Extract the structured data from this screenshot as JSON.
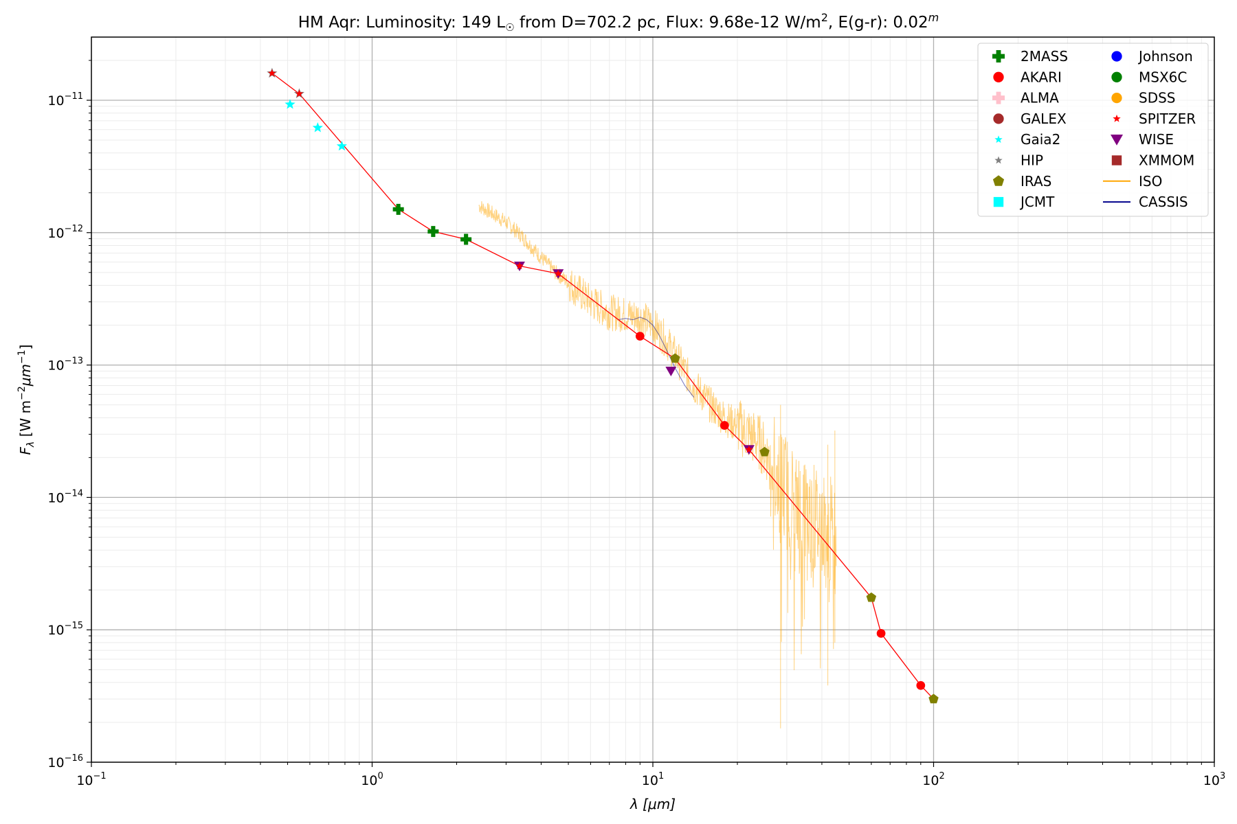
{
  "chart_data": {
    "type": "scatter",
    "title": {
      "object": "HM Aqr:",
      "lum_prefix": "Luminosity: 149 L",
      "sun_symbol": "☉",
      "mid": " from D=702.2 pc, Flux: 9.68e-12 W/m",
      "sup2": "2",
      "tail": ", E(g-r): 0.02",
      "supm": "m"
    },
    "xlabel": {
      "lambda": "λ",
      "unit": " [μm]"
    },
    "ylabel": {
      "F": "F",
      "sub": "λ",
      "unit_a": " [W m",
      "sup_a": "−2",
      "unit_b": "μm",
      "sup_b": "−1",
      "close": "]"
    },
    "x_scale": "log",
    "y_scale": "log",
    "xlim": [
      0.1,
      1000
    ],
    "ylim": [
      1e-16,
      3e-11
    ],
    "x_ticks": [
      {
        "base": "10",
        "exp": "−1",
        "value": 0.1
      },
      {
        "base": "10",
        "exp": "0",
        "value": 1
      },
      {
        "base": "10",
        "exp": "1",
        "value": 10
      },
      {
        "base": "10",
        "exp": "2",
        "value": 100
      },
      {
        "base": "10",
        "exp": "3",
        "value": 1000
      }
    ],
    "y_ticks": [
      {
        "base": "10",
        "exp": "−11",
        "value": 1e-11
      },
      {
        "base": "10",
        "exp": "−12",
        "value": 1e-12
      },
      {
        "base": "10",
        "exp": "−13",
        "value": 1e-13
      },
      {
        "base": "10",
        "exp": "−14",
        "value": 1e-14
      },
      {
        "base": "10",
        "exp": "−15",
        "value": 1e-15
      },
      {
        "base": "10",
        "exp": "−16",
        "value": 1e-16
      }
    ],
    "grid": true,
    "legend_position": "top-right",
    "legend": [
      {
        "label": "2MASS",
        "marker": "plus",
        "color": "#008000"
      },
      {
        "label": "AKARI",
        "marker": "circle",
        "color": "#ff0000"
      },
      {
        "label": "ALMA",
        "marker": "plus",
        "color": "#ffc0cb"
      },
      {
        "label": "GALEX",
        "marker": "circle",
        "color": "#a52a2a"
      },
      {
        "label": "Gaia2",
        "marker": "star",
        "color": "#00ffff"
      },
      {
        "label": "HIP",
        "marker": "star",
        "color": "#808080"
      },
      {
        "label": "IRAS",
        "marker": "pentagon",
        "color": "#808000"
      },
      {
        "label": "JCMT",
        "marker": "square",
        "color": "#00ffff"
      },
      {
        "label": "Johnson",
        "marker": "circle",
        "color": "#0000ff"
      },
      {
        "label": "MSX6C",
        "marker": "circle",
        "color": "#008000"
      },
      {
        "label": "SDSS",
        "marker": "circle",
        "color": "#ffa500"
      },
      {
        "label": "SPITZER",
        "marker": "star",
        "color": "#ff0000"
      },
      {
        "label": "WISE",
        "marker": "triangle-down",
        "color": "#800080"
      },
      {
        "label": "XMMOM",
        "marker": "square",
        "color": "#a52a2a"
      },
      {
        "label": "ISO",
        "marker": "line",
        "color": "#ffa500"
      },
      {
        "label": "CASSIS",
        "marker": "line",
        "color": "#00008b"
      }
    ],
    "sed_line": {
      "color": "#ff0000",
      "x": [
        0.44,
        0.55,
        1.24,
        1.65,
        2.16,
        3.35,
        4.6,
        9.0,
        12.0,
        18.0,
        22.0,
        60.0,
        65.0,
        90.0,
        100.0
      ],
      "y": [
        1.6e-11,
        1.12e-11,
        1.5e-12,
        1.02e-12,
        8.9e-13,
        5.6e-13,
        4.9e-13,
        1.65e-13,
        1.12e-13,
        3.5e-14,
        2.3e-14,
        1.75e-15,
        9.4e-16,
        3.8e-16,
        3e-16
      ]
    },
    "photometry": [
      {
        "survey": "HIP",
        "x": [
          0.44,
          0.55
        ],
        "y": [
          1.6e-11,
          1.12e-11
        ]
      },
      {
        "survey": "Gaia2",
        "x": [
          0.51,
          0.64,
          0.78
        ],
        "y": [
          9.3e-12,
          6.2e-12,
          4.5e-12
        ]
      },
      {
        "survey": "SPITZER",
        "x": [
          0.44,
          0.55,
          3.35,
          4.6,
          22.0
        ],
        "y": [
          1.6e-11,
          1.12e-11,
          5.6e-13,
          4.9e-13,
          2.3e-14
        ]
      },
      {
        "survey": "2MASS",
        "x": [
          1.24,
          1.65,
          2.16
        ],
        "y": [
          1.5e-12,
          1.02e-12,
          8.9e-13
        ]
      },
      {
        "survey": "WISE",
        "x": [
          3.35,
          4.6,
          11.6,
          22.0
        ],
        "y": [
          5.6e-13,
          4.9e-13,
          9e-14,
          2.3e-14
        ]
      },
      {
        "survey": "AKARI",
        "x": [
          9.0,
          18.0,
          65.0,
          90.0
        ],
        "y": [
          1.65e-13,
          3.5e-14,
          9.4e-16,
          3.8e-16
        ]
      },
      {
        "survey": "IRAS",
        "x": [
          12.0,
          25.0,
          60.0,
          100.0
        ],
        "y": [
          1.12e-13,
          2.2e-14,
          1.75e-15,
          3e-16
        ]
      }
    ],
    "spectra": [
      {
        "name": "ISO",
        "x": [
          2.4,
          2.6,
          3.0,
          3.4,
          4.0,
          4.5,
          5.0,
          6.0,
          7.0,
          8.0,
          9.0,
          10.0,
          11.0,
          12.0,
          13.0,
          14.0,
          15.0,
          16.0,
          18.0,
          20.0,
          22.0,
          24.0,
          26.0,
          28.0,
          30.0,
          32.0,
          34.0,
          36.0,
          38.0,
          40.0,
          42.0,
          44.0,
          45.0
        ],
        "y": [
          1.6e-12,
          1.45e-12,
          1.2e-12,
          9.5e-13,
          6.5e-13,
          5e-13,
          4.2e-13,
          3e-13,
          2.5e-13,
          2.4e-13,
          2.3e-13,
          2e-13,
          1.6e-13,
          1.2e-13,
          9e-14,
          7e-14,
          6e-14,
          5e-14,
          4e-14,
          3.5e-14,
          3e-14,
          2.6e-14,
          2e-14,
          1.5e-14,
          1.1e-14,
          9e-15,
          8e-15,
          7e-15,
          6.5e-15,
          6e-15,
          5.5e-15,
          5e-15,
          5e-15
        ],
        "noise_extremes": [
          {
            "x": 28.5,
            "low": 1.8e-16,
            "high": 5e-14
          },
          {
            "x": 42.0,
            "low": 3.8e-16,
            "high": 2.5e-14
          },
          {
            "x": 44.5,
            "low": 8e-16,
            "high": 3.2e-14
          }
        ]
      },
      {
        "name": "CASSIS",
        "x": [
          7.5,
          8.0,
          8.5,
          9.0,
          9.5,
          10.0,
          10.5,
          11.0,
          11.5,
          12.0,
          13.0,
          14.0
        ],
        "y": [
          2.2e-13,
          2.25e-13,
          2.2e-13,
          2.3e-13,
          2.2e-13,
          2e-13,
          1.7e-13,
          1.4e-13,
          1.15e-13,
          9.5e-14,
          7e-14,
          5.7e-14
        ]
      }
    ]
  }
}
